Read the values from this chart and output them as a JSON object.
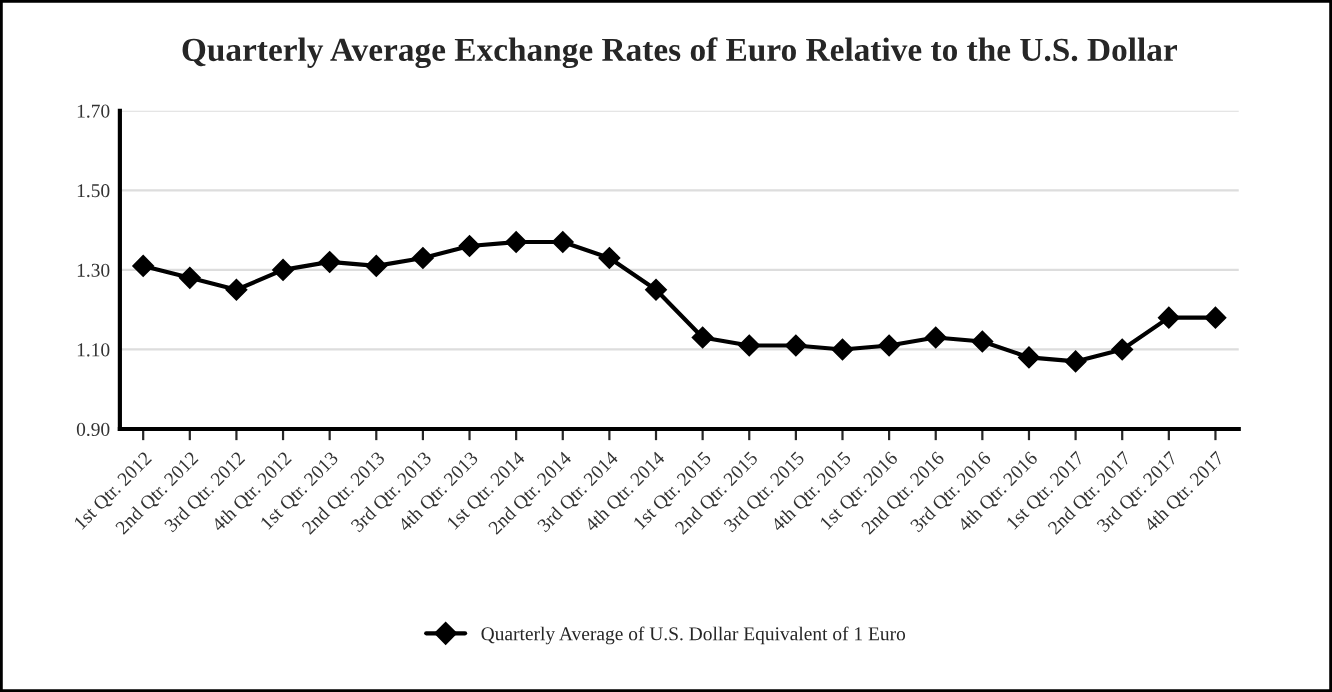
{
  "chart_data": {
    "type": "line",
    "title": "Quarterly Average Exchange Rates of Euro Relative to the U.S. Dollar",
    "categories": [
      "1st Qtr. 2012",
      "2nd Qtr. 2012",
      "3rd Qtr. 2012",
      "4th Qtr. 2012",
      "1st Qtr. 2013",
      "2nd Qtr. 2013",
      "3rd Qtr. 2013",
      "4th Qtr. 2013",
      "1st Qtr. 2014",
      "2nd Qtr. 2014",
      "3rd Qtr. 2014",
      "4th Qtr. 2014",
      "1st Qtr. 2015",
      "2nd Qtr. 2015",
      "3rd Qtr. 2015",
      "4th Qtr. 2015",
      "1st Qtr. 2016",
      "2nd Qtr. 2016",
      "3rd Qtr. 2016",
      "4th Qtr. 2016",
      "1st Qtr. 2017",
      "2nd Qtr. 2017",
      "3rd Qtr. 2017",
      "4th Qtr. 2017"
    ],
    "series": [
      {
        "name": "Quarterly Average of U.S. Dollar Equivalent of 1 Euro",
        "color": "#000000",
        "values": [
          1.31,
          1.28,
          1.25,
          1.3,
          1.32,
          1.31,
          1.33,
          1.36,
          1.37,
          1.37,
          1.33,
          1.25,
          1.13,
          1.11,
          1.11,
          1.1,
          1.11,
          1.13,
          1.12,
          1.08,
          1.07,
          1.1,
          1.18,
          1.18
        ]
      }
    ],
    "ylim": [
      0.9,
      1.7
    ],
    "yticks": [
      {
        "value": 0.9,
        "label": "0.90"
      },
      {
        "value": 1.1,
        "label": "1.10"
      },
      {
        "value": 1.3,
        "label": "1.30"
      },
      {
        "value": 1.5,
        "label": "1.50"
      },
      {
        "value": 1.7,
        "label": "1.70"
      }
    ],
    "grid": "y",
    "legend": "bottom",
    "marker": "diamond",
    "line_style": "solid"
  }
}
